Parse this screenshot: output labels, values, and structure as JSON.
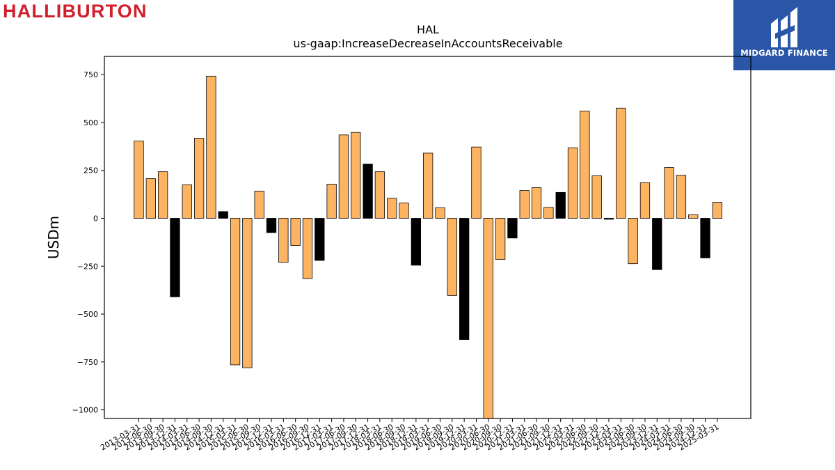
{
  "logo_left": {
    "text": "HALLIBURTON"
  },
  "logo_right": {
    "text": "MIDGARD FINANCE"
  },
  "chart_data": {
    "type": "bar",
    "title": "HAL",
    "subtitle": "us-gaap:IncreaseDecreaseInAccountsReceivable",
    "ylabel": "USDm",
    "xlabel": "",
    "ylim": [
      -1045,
      845
    ],
    "yticks": [
      750,
      500,
      250,
      0,
      -250,
      -500,
      -750,
      -1000
    ],
    "ytick_labels": [
      "750",
      "500",
      "250",
      "0",
      "−250",
      "−500",
      "−750",
      "−1000"
    ],
    "grid": false,
    "colors": {
      "quarter": "#fdb462",
      "annual_q4": "#000000",
      "edge": "#000000"
    },
    "categories": [
      "2013-03-31",
      "2013-06-30",
      "2013-09-30",
      "2013-12-31",
      "2014-03-31",
      "2014-06-30",
      "2014-09-30",
      "2014-12-31",
      "2015-03-31",
      "2015-06-30",
      "2015-09-30",
      "2015-12-31",
      "2016-03-31",
      "2016-06-30",
      "2016-09-30",
      "2016-12-31",
      "2017-03-31",
      "2017-06-30",
      "2017-09-30",
      "2017-12-31",
      "2018-03-31",
      "2018-06-30",
      "2018-09-30",
      "2018-12-31",
      "2019-03-31",
      "2019-06-30",
      "2019-09-30",
      "2019-12-31",
      "2020-03-31",
      "2020-06-30",
      "2020-09-30",
      "2020-12-31",
      "2021-03-31",
      "2021-06-30",
      "2021-09-30",
      "2021-12-31",
      "2022-03-31",
      "2022-06-30",
      "2022-09-30",
      "2022-12-31",
      "2023-03-31",
      "2023-06-30",
      "2023-09-30",
      "2023-12-31",
      "2024-03-31",
      "2024-06-30",
      "2024-09-30",
      "2024-12-31",
      "2025-03-31"
    ],
    "values": [
      403,
      207,
      243,
      -410,
      175,
      418,
      742,
      35,
      -765,
      -780,
      142,
      -75,
      -230,
      -142,
      -315,
      -220,
      178,
      435,
      448,
      283,
      243,
      105,
      80,
      -245,
      340,
      55,
      -403,
      -633,
      372,
      -1045,
      -215,
      -103,
      145,
      160,
      57,
      135,
      368,
      560,
      222,
      -5,
      575,
      -237,
      185,
      -268,
      265,
      225,
      18,
      -207,
      83
    ],
    "series": [
      {
        "name": "",
        "color_rule": "Q4 (12-31) bars black, other quarters orange"
      }
    ]
  }
}
